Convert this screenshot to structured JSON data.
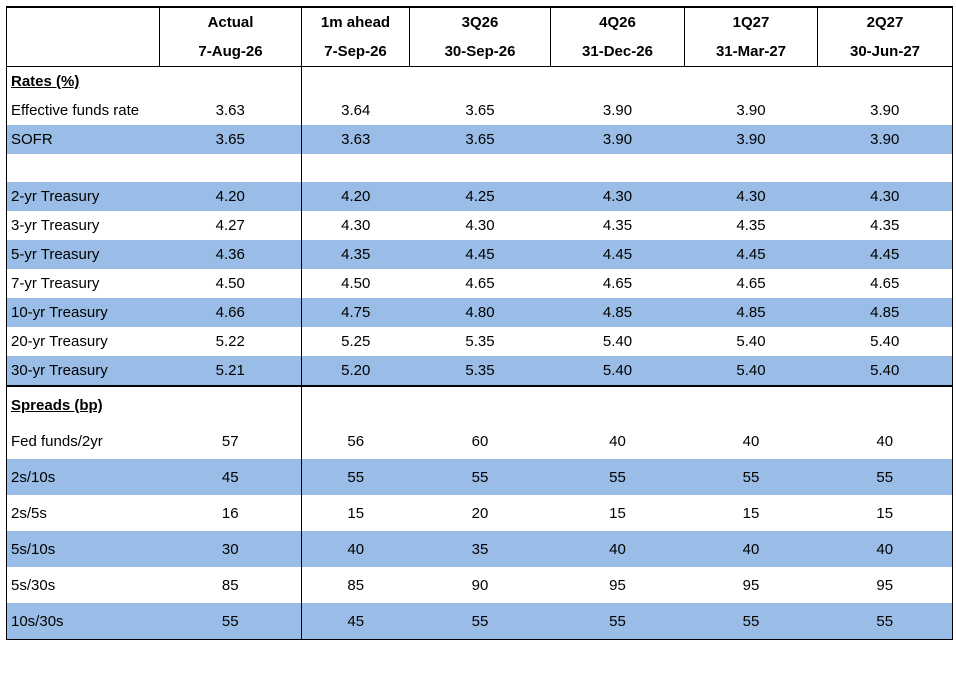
{
  "table": {
    "header_row1": [
      "",
      "Actual",
      "1m ahead",
      "3Q26",
      "4Q26",
      "1Q27",
      "2Q27"
    ],
    "header_row2": [
      "",
      "7-Aug-26",
      "7-Sep-26",
      "30-Sep-26",
      "31-Dec-26",
      "31-Mar-27",
      "30-Jun-27"
    ],
    "rates_label": "Rates (%)",
    "rates": [
      {
        "label": "Effective funds rate",
        "values": [
          "3.63",
          "3.64",
          "3.65",
          "3.90",
          "3.90",
          "3.90"
        ]
      },
      {
        "label": "SOFR",
        "values": [
          "3.65",
          "3.63",
          "3.65",
          "3.90",
          "3.90",
          "3.90"
        ]
      }
    ],
    "treasuries": [
      {
        "label": "2-yr Treasury",
        "values": [
          "4.20",
          "4.20",
          "4.25",
          "4.30",
          "4.30",
          "4.30"
        ]
      },
      {
        "label": "3-yr Treasury",
        "values": [
          "4.27",
          "4.30",
          "4.30",
          "4.35",
          "4.35",
          "4.35"
        ]
      },
      {
        "label": "5-yr Treasury",
        "values": [
          "4.36",
          "4.35",
          "4.45",
          "4.45",
          "4.45",
          "4.45"
        ]
      },
      {
        "label": "7-yr Treasury",
        "values": [
          "4.50",
          "4.50",
          "4.65",
          "4.65",
          "4.65",
          "4.65"
        ]
      },
      {
        "label": "10-yr Treasury",
        "values": [
          "4.66",
          "4.75",
          "4.80",
          "4.85",
          "4.85",
          "4.85"
        ]
      },
      {
        "label": "20-yr Treasury",
        "values": [
          "5.22",
          "5.25",
          "5.35",
          "5.40",
          "5.40",
          "5.40"
        ]
      },
      {
        "label": "30-yr Treasury",
        "values": [
          "5.21",
          "5.20",
          "5.35",
          "5.40",
          "5.40",
          "5.40"
        ]
      }
    ],
    "spreads_label": "Spreads (bp)",
    "spreads": [
      {
        "label": "Fed funds/2yr",
        "values": [
          "57",
          "56",
          "60",
          "40",
          "40",
          "40"
        ]
      },
      {
        "label": "2s/10s",
        "values": [
          "45",
          "55",
          "55",
          "55",
          "55",
          "55"
        ]
      },
      {
        "label": "2s/5s",
        "values": [
          "16",
          "15",
          "20",
          "15",
          "15",
          "15"
        ]
      },
      {
        "label": "5s/10s",
        "values": [
          "30",
          "40",
          "35",
          "40",
          "40",
          "40"
        ]
      },
      {
        "label": "5s/30s",
        "values": [
          "85",
          "85",
          "90",
          "95",
          "95",
          "95"
        ]
      },
      {
        "label": "10s/30s",
        "values": [
          "55",
          "45",
          "55",
          "55",
          "55",
          "55"
        ]
      }
    ]
  },
  "colors": {
    "band": "#99bde6",
    "text": "#000000"
  }
}
